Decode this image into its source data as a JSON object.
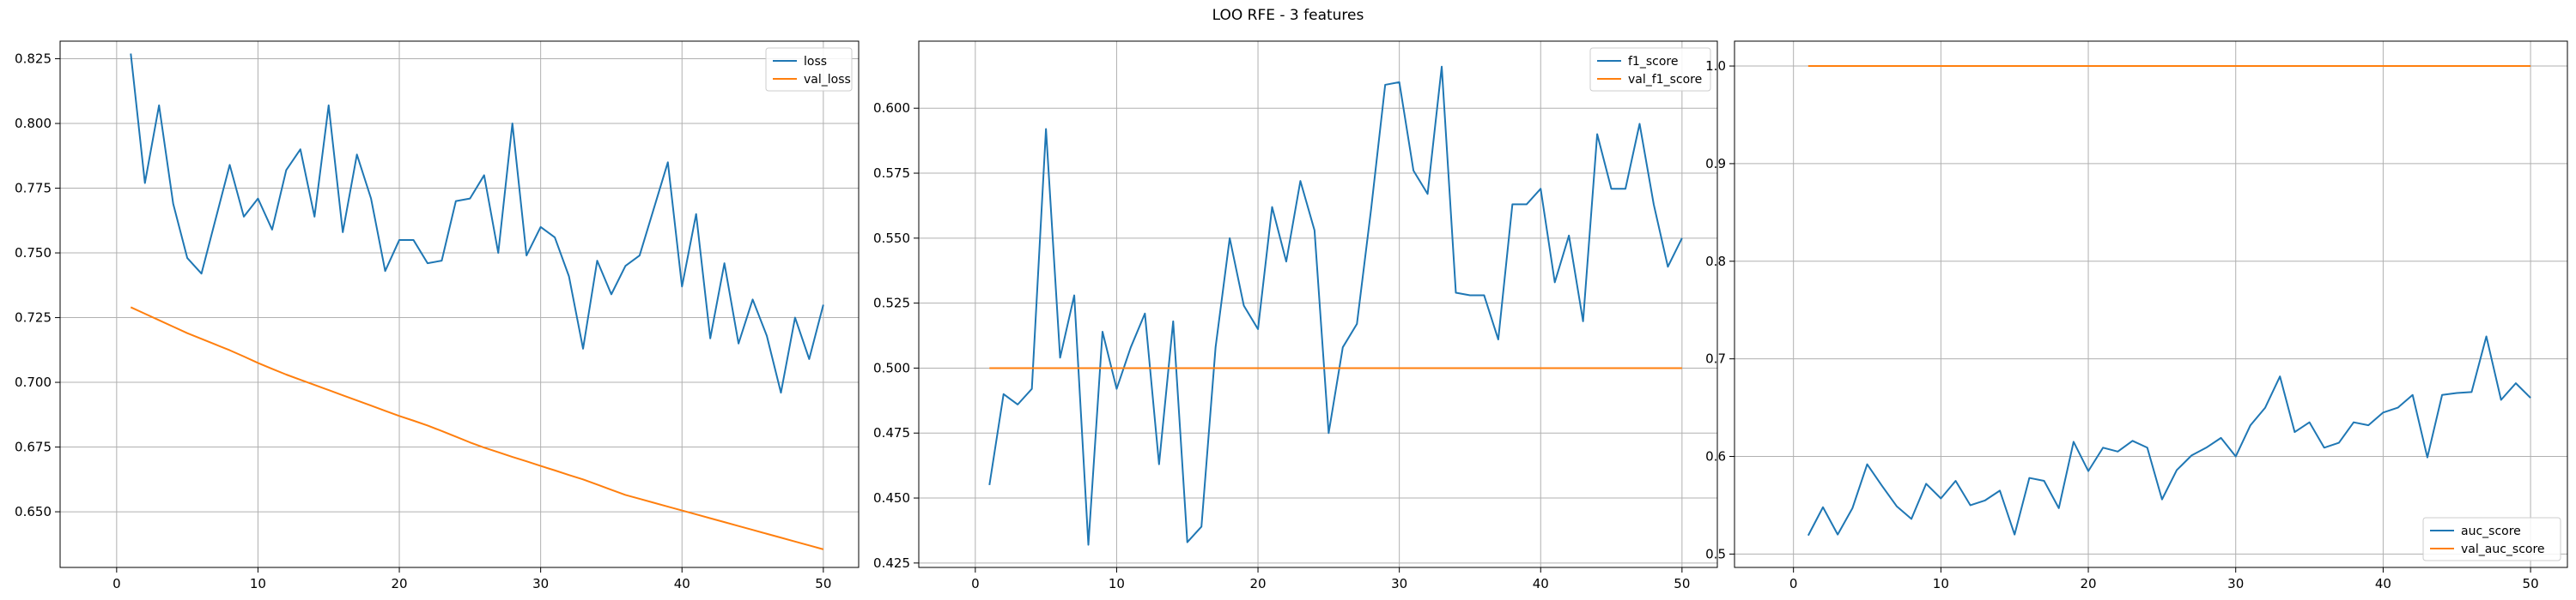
{
  "figure": {
    "title": "LOO RFE - 3 features"
  },
  "colors": {
    "series1": "#1f77b4",
    "series2": "#ff7f0e",
    "grid": "#b0b0b0",
    "axis": "#000000"
  },
  "chart_data": [
    {
      "type": "line",
      "title": "",
      "xlabel": "",
      "ylabel": "",
      "xlim": [
        -4.0,
        52.5
      ],
      "ylim": [
        0.6285,
        0.8318
      ],
      "xticks": [
        0,
        10,
        20,
        30,
        40,
        50
      ],
      "yticks": [
        0.65,
        0.675,
        0.7,
        0.725,
        0.75,
        0.775,
        0.8,
        0.825
      ],
      "ytick_labels": [
        "0.650",
        "0.675",
        "0.700",
        "0.725",
        "0.750",
        "0.775",
        "0.800",
        "0.825"
      ],
      "grid": true,
      "legend": "top-right",
      "x": [
        1,
        2,
        3,
        4,
        5,
        6,
        7,
        8,
        9,
        10,
        11,
        12,
        13,
        14,
        15,
        16,
        17,
        18,
        19,
        20,
        21,
        22,
        23,
        24,
        25,
        26,
        27,
        28,
        29,
        30,
        31,
        32,
        33,
        34,
        35,
        36,
        37,
        38,
        39,
        40,
        41,
        42,
        43,
        44,
        45,
        46,
        47,
        48,
        49,
        50
      ],
      "series": [
        {
          "name": "loss",
          "color": "#1f77b4",
          "values": [
            0.827,
            0.777,
            0.807,
            0.769,
            0.748,
            0.742,
            0.763,
            0.784,
            0.764,
            0.771,
            0.759,
            0.782,
            0.79,
            0.764,
            0.807,
            0.758,
            0.788,
            0.771,
            0.743,
            0.755,
            0.755,
            0.746,
            0.747,
            0.77,
            0.771,
            0.78,
            0.75,
            0.8,
            0.749,
            0.76,
            0.756,
            0.741,
            0.713,
            0.747,
            0.734,
            0.745,
            0.749,
            0.767,
            0.785,
            0.737,
            0.765,
            0.717,
            0.746,
            0.715,
            0.732,
            0.718,
            0.696,
            0.725,
            0.709,
            0.73
          ]
        },
        {
          "name": "val_loss",
          "color": "#ff7f0e",
          "values": [
            0.729,
            0.7265,
            0.724,
            0.7215,
            0.719,
            0.7168,
            0.7146,
            0.7124,
            0.71,
            0.7075,
            0.7052,
            0.703,
            0.701,
            0.699,
            0.697,
            0.695,
            0.693,
            0.691,
            0.689,
            0.687,
            0.6852,
            0.6833,
            0.6812,
            0.679,
            0.6768,
            0.6748,
            0.673,
            0.6712,
            0.6695,
            0.6677,
            0.666,
            0.6642,
            0.6625,
            0.6605,
            0.6585,
            0.6565,
            0.655,
            0.6535,
            0.652,
            0.6505,
            0.649,
            0.6475,
            0.646,
            0.6445,
            0.643,
            0.6415,
            0.64,
            0.6385,
            0.637,
            0.6355
          ]
        }
      ]
    },
    {
      "type": "line",
      "title": "",
      "xlabel": "",
      "ylabel": "",
      "xlim": [
        -4.0,
        52.5
      ],
      "ylim": [
        0.4233,
        0.6258
      ],
      "xticks": [
        0,
        10,
        20,
        30,
        40,
        50
      ],
      "yticks": [
        0.425,
        0.45,
        0.475,
        0.5,
        0.525,
        0.55,
        0.575,
        0.6
      ],
      "ytick_labels": [
        "0.425",
        "0.450",
        "0.475",
        "0.500",
        "0.525",
        "0.550",
        "0.575",
        "0.600"
      ],
      "grid": true,
      "legend": "top-right",
      "x": [
        1,
        2,
        3,
        4,
        5,
        6,
        7,
        8,
        9,
        10,
        11,
        12,
        13,
        14,
        15,
        16,
        17,
        18,
        19,
        20,
        21,
        22,
        23,
        24,
        25,
        26,
        27,
        28,
        29,
        30,
        31,
        32,
        33,
        34,
        35,
        36,
        37,
        38,
        39,
        40,
        41,
        42,
        43,
        44,
        45,
        46,
        47,
        48,
        49,
        50
      ],
      "series": [
        {
          "name": "f1_score",
          "color": "#1f77b4",
          "values": [
            0.455,
            0.49,
            0.486,
            0.492,
            0.592,
            0.504,
            0.528,
            0.432,
            0.514,
            0.492,
            0.508,
            0.521,
            0.463,
            0.518,
            0.433,
            0.439,
            0.508,
            0.55,
            0.524,
            0.515,
            0.562,
            0.541,
            0.572,
            0.553,
            0.475,
            0.508,
            0.517,
            0.561,
            0.609,
            0.61,
            0.576,
            0.567,
            0.616,
            0.529,
            0.528,
            0.528,
            0.511,
            0.563,
            0.563,
            0.569,
            0.533,
            0.551,
            0.518,
            0.59,
            0.569,
            0.569,
            0.594,
            0.563,
            0.539,
            0.55
          ]
        },
        {
          "name": "val_f1_score",
          "color": "#ff7f0e",
          "values": [
            0.5,
            0.5,
            0.5,
            0.5,
            0.5,
            0.5,
            0.5,
            0.5,
            0.5,
            0.5,
            0.5,
            0.5,
            0.5,
            0.5,
            0.5,
            0.5,
            0.5,
            0.5,
            0.5,
            0.5,
            0.5,
            0.5,
            0.5,
            0.5,
            0.5,
            0.5,
            0.5,
            0.5,
            0.5,
            0.5,
            0.5,
            0.5,
            0.5,
            0.5,
            0.5,
            0.5,
            0.5,
            0.5,
            0.5,
            0.5,
            0.5,
            0.5,
            0.5,
            0.5,
            0.5,
            0.5,
            0.5,
            0.5,
            0.5,
            0.5
          ]
        }
      ]
    },
    {
      "type": "line",
      "title": "",
      "xlabel": "",
      "ylabel": "",
      "xlim": [
        -4.0,
        52.5
      ],
      "ylim": [
        0.4863,
        1.0255
      ],
      "xticks": [
        0,
        10,
        20,
        30,
        40,
        50
      ],
      "yticks": [
        0.5,
        0.6,
        0.7,
        0.8,
        0.9,
        1.0
      ],
      "ytick_labels": [
        "0.5",
        "0.6",
        "0.7",
        "0.8",
        "0.9",
        "1.0"
      ],
      "grid": true,
      "legend": "bottom-right",
      "x": [
        1,
        2,
        3,
        4,
        5,
        6,
        7,
        8,
        9,
        10,
        11,
        12,
        13,
        14,
        15,
        16,
        17,
        18,
        19,
        20,
        21,
        22,
        23,
        24,
        25,
        26,
        27,
        28,
        29,
        30,
        31,
        32,
        33,
        34,
        35,
        36,
        37,
        38,
        39,
        40,
        41,
        42,
        43,
        44,
        45,
        46,
        47,
        48,
        49,
        50
      ],
      "series": [
        {
          "name": "auc_score",
          "color": "#1f77b4",
          "values": [
            0.519,
            0.548,
            0.52,
            0.547,
            0.592,
            0.57,
            0.549,
            0.536,
            0.572,
            0.557,
            0.575,
            0.55,
            0.555,
            0.565,
            0.52,
            0.578,
            0.575,
            0.547,
            0.615,
            0.585,
            0.609,
            0.605,
            0.616,
            0.609,
            0.556,
            0.586,
            0.601,
            0.609,
            0.619,
            0.6,
            0.632,
            0.65,
            0.682,
            0.625,
            0.635,
            0.609,
            0.614,
            0.635,
            0.632,
            0.645,
            0.65,
            0.663,
            0.599,
            0.663,
            0.665,
            0.666,
            0.723,
            0.658,
            0.675,
            0.66
          ]
        },
        {
          "name": "val_auc_score",
          "color": "#ff7f0e",
          "values": [
            1.0,
            1.0,
            1.0,
            1.0,
            1.0,
            1.0,
            1.0,
            1.0,
            1.0,
            1.0,
            1.0,
            1.0,
            1.0,
            1.0,
            1.0,
            1.0,
            1.0,
            1.0,
            1.0,
            1.0,
            1.0,
            1.0,
            1.0,
            1.0,
            1.0,
            1.0,
            1.0,
            1.0,
            1.0,
            1.0,
            1.0,
            1.0,
            1.0,
            1.0,
            1.0,
            1.0,
            1.0,
            1.0,
            1.0,
            1.0,
            1.0,
            1.0,
            1.0,
            1.0,
            1.0,
            1.0,
            1.0,
            1.0,
            1.0,
            1.0
          ]
        }
      ]
    }
  ]
}
